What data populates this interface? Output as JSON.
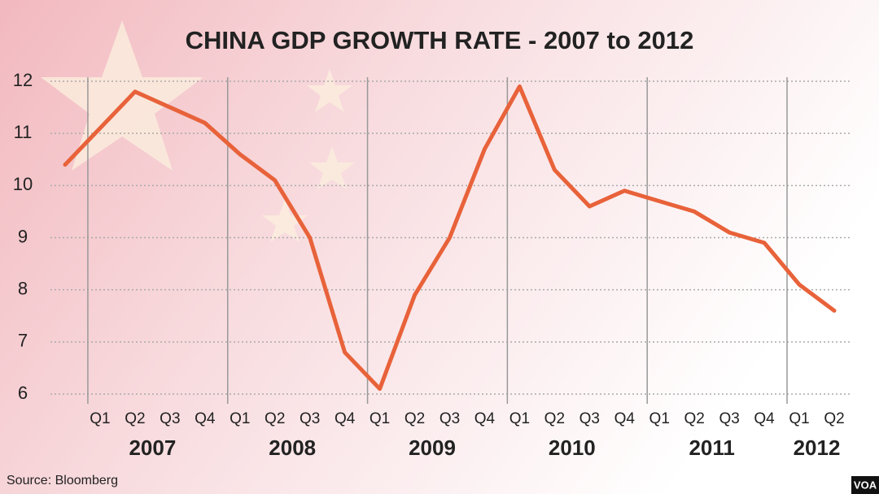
{
  "chart_data": {
    "type": "line",
    "title": "CHINA GDP GROWTH RATE - 2007 to 2012",
    "categories": [
      null,
      "Q1",
      "Q2",
      "Q3",
      "Q4",
      "Q1",
      "Q2",
      "Q3",
      "Q4",
      "Q1",
      "Q2",
      "Q3",
      "Q4",
      "Q1",
      "Q2",
      "Q3",
      "Q4",
      "Q1",
      "Q2",
      "Q3",
      "Q4",
      "Q1",
      "Q2"
    ],
    "years": [
      "2007",
      "2008",
      "2009",
      "2010",
      "2011",
      "2012"
    ],
    "series": [
      {
        "name": "GDP growth",
        "color": "#e8623a",
        "values": [
          10.4,
          11.1,
          11.8,
          11.5,
          11.2,
          10.6,
          10.1,
          9.0,
          6.8,
          6.1,
          7.9,
          9.0,
          10.7,
          11.9,
          10.3,
          9.6,
          9.9,
          9.7,
          9.5,
          9.1,
          8.9,
          8.1,
          7.6
        ]
      }
    ],
    "ylim": [
      6,
      12
    ],
    "yticks": [
      6,
      7,
      8,
      9,
      10,
      11,
      12
    ],
    "grid": true,
    "source": "Source: Bloomberg",
    "logo": "VOA"
  }
}
